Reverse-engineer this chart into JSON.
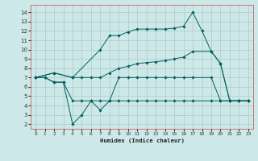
{
  "xlabel": "Humidex (Indice chaleur)",
  "bg_color": "#cde8e8",
  "grid_color": "#b0c8c8",
  "line_color": "#006060",
  "x_ticks": [
    0,
    1,
    2,
    3,
    4,
    5,
    6,
    7,
    8,
    9,
    10,
    11,
    12,
    13,
    14,
    15,
    16,
    17,
    18,
    19,
    20,
    21,
    22,
    23
  ],
  "y_ticks": [
    2,
    3,
    4,
    5,
    6,
    7,
    8,
    9,
    10,
    11,
    12,
    13,
    14
  ],
  "ylim": [
    1.5,
    14.8
  ],
  "xlim": [
    -0.5,
    23.5
  ],
  "line1_x": [
    0,
    2,
    4,
    5,
    6,
    7,
    8,
    9,
    10,
    11,
    12,
    13,
    14,
    15,
    16,
    17,
    19,
    20,
    21,
    22,
    23
  ],
  "line1_y": [
    7,
    7.5,
    7,
    7,
    7,
    7,
    7.5,
    8,
    8.2,
    8.5,
    8.6,
    8.7,
    8.8,
    9.0,
    9.2,
    9.8,
    9.8,
    8.5,
    4.5,
    4.5,
    4.5
  ],
  "line2_x": [
    0,
    2,
    4,
    7,
    8,
    9,
    10,
    11,
    12,
    13,
    14,
    15,
    16,
    17,
    18,
    19,
    20,
    21,
    22,
    23
  ],
  "line2_y": [
    7,
    7.5,
    7,
    10,
    11.5,
    11.5,
    11.9,
    12.2,
    12.2,
    12.2,
    12.2,
    12.3,
    12.5,
    14,
    12,
    9.8,
    8.5,
    4.5,
    4.5,
    4.5
  ],
  "line3_x": [
    0,
    1,
    2,
    3,
    4,
    5,
    6,
    7,
    8,
    9,
    10,
    11,
    12,
    13,
    14,
    15,
    16,
    17,
    19,
    20,
    21,
    22,
    23
  ],
  "line3_y": [
    7,
    7,
    6.5,
    6.5,
    4.5,
    4.5,
    4.5,
    4.5,
    4.5,
    4.5,
    4.5,
    4.5,
    4.5,
    4.5,
    4.5,
    4.5,
    4.5,
    4.5,
    4.5,
    4.5,
    4.5,
    4.5,
    4.5
  ],
  "line4_x": [
    0,
    1,
    2,
    3,
    4,
    5,
    6,
    7,
    8,
    9,
    10,
    11,
    12,
    13,
    14,
    15,
    16,
    17,
    19,
    20,
    21,
    22,
    23
  ],
  "line4_y": [
    7,
    7,
    6.5,
    6.5,
    2,
    3,
    4.5,
    3.5,
    4.5,
    7,
    7,
    7,
    7,
    7,
    7,
    7,
    7,
    7,
    7,
    4.5,
    4.5,
    4.5,
    4.5
  ]
}
